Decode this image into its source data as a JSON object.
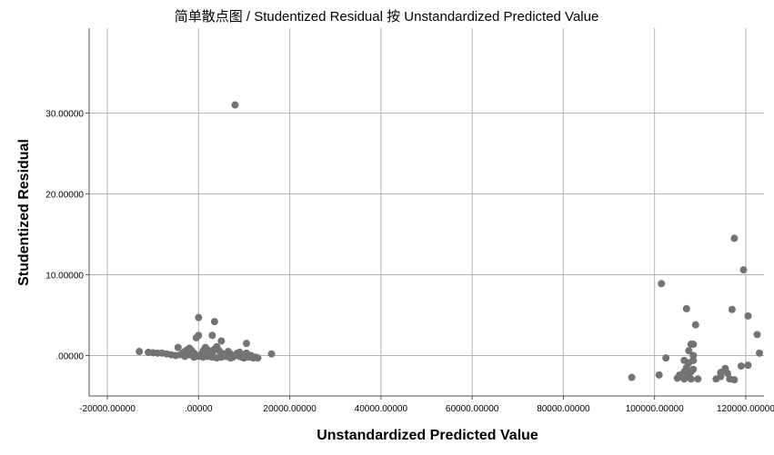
{
  "chart_data": {
    "type": "scatter",
    "title": "简单散点图 / Studentized Residual 按 Unstandardized Predicted Value",
    "xlabel": "Unstandardized Predicted Value",
    "ylabel": "Studentized Residual",
    "xlim": [
      -24000,
      124000
    ],
    "ylim": [
      -5,
      40.5
    ],
    "x_ticks": [
      -20000,
      0,
      20000,
      40000,
      60000,
      80000,
      100000,
      120000
    ],
    "x_tick_labels": [
      "-20000.00000",
      ".00000",
      "20000.00000",
      "40000.00000",
      "60000.00000",
      "80000.00000",
      "100000.00000",
      "120000.00000"
    ],
    "y_ticks": [
      0,
      10,
      20,
      30
    ],
    "y_tick_labels": [
      ".00000",
      "10.00000",
      "20.00000",
      "30.00000"
    ],
    "grid": true,
    "marker_color": "#737373",
    "series": [
      {
        "points": [
          [
            8000,
            31.0
          ],
          [
            0,
            4.7
          ],
          [
            3500,
            4.2
          ],
          [
            3000,
            2.5
          ],
          [
            -500,
            2.2
          ],
          [
            0,
            2.5
          ],
          [
            5000,
            1.8
          ],
          [
            10500,
            1.5
          ],
          [
            -4500,
            1.0
          ],
          [
            -13000,
            0.5
          ],
          [
            -11000,
            0.4
          ],
          [
            -10000,
            0.35
          ],
          [
            -9000,
            0.3
          ],
          [
            -8000,
            0.3
          ],
          [
            -7000,
            0.2
          ],
          [
            -6000,
            0.1
          ],
          [
            -5000,
            0.0
          ],
          [
            -4000,
            0.1
          ],
          [
            -3500,
            0.3
          ],
          [
            -3000,
            0.5
          ],
          [
            -2500,
            0.7
          ],
          [
            -2000,
            0.9
          ],
          [
            -1500,
            0.6
          ],
          [
            -1000,
            0.3
          ],
          [
            -500,
            0.0
          ],
          [
            0,
            -0.1
          ],
          [
            500,
            0.1
          ],
          [
            1000,
            0.6
          ],
          [
            1500,
            1.0
          ],
          [
            2000,
            0.7
          ],
          [
            2500,
            0.4
          ],
          [
            3000,
            0.2
          ],
          [
            3500,
            0.8
          ],
          [
            4000,
            1.1
          ],
          [
            4500,
            0.6
          ],
          [
            5000,
            0.3
          ],
          [
            5500,
            0.1
          ],
          [
            6000,
            -0.1
          ],
          [
            6500,
            0.5
          ],
          [
            7000,
            0.2
          ],
          [
            7500,
            -0.2
          ],
          [
            8000,
            0.0
          ],
          [
            8500,
            0.3
          ],
          [
            9000,
            -0.1
          ],
          [
            9500,
            -0.2
          ],
          [
            10000,
            0.1
          ],
          [
            10500,
            0.3
          ],
          [
            11000,
            -0.2
          ],
          [
            11500,
            0.0
          ],
          [
            12000,
            -0.3
          ],
          [
            12500,
            -0.2
          ],
          [
            13000,
            -0.3
          ],
          [
            16000,
            0.2
          ],
          [
            -3000,
            -0.1
          ],
          [
            -2000,
            0.1
          ],
          [
            -1000,
            -0.2
          ],
          [
            1000,
            -0.2
          ],
          [
            2000,
            -0.1
          ],
          [
            3000,
            -0.2
          ],
          [
            4000,
            -0.3
          ],
          [
            5000,
            -0.2
          ],
          [
            6000,
            0.2
          ],
          [
            7000,
            -0.3
          ],
          [
            9000,
            0.4
          ],
          [
            10000,
            -0.3
          ],
          [
            117500,
            14.5
          ],
          [
            119500,
            10.6
          ],
          [
            117000,
            5.7
          ],
          [
            120500,
            4.9
          ],
          [
            101500,
            8.9
          ],
          [
            107000,
            5.8
          ],
          [
            109000,
            3.8
          ],
          [
            122500,
            2.6
          ],
          [
            108000,
            1.4
          ],
          [
            108500,
            1.4
          ],
          [
            107500,
            0.6
          ],
          [
            123000,
            0.3
          ],
          [
            108500,
            0.0
          ],
          [
            102500,
            -0.3
          ],
          [
            108500,
            -0.6
          ],
          [
            106500,
            -0.6
          ],
          [
            107500,
            -0.9
          ],
          [
            120500,
            -1.2
          ],
          [
            119000,
            -1.3
          ],
          [
            107000,
            -1.5
          ],
          [
            115500,
            -1.6
          ],
          [
            106500,
            -2.0
          ],
          [
            108000,
            -2.0
          ],
          [
            116000,
            -2.2
          ],
          [
            105500,
            -2.4
          ],
          [
            101000,
            -2.4
          ],
          [
            107500,
            -2.5
          ],
          [
            114500,
            -2.6
          ],
          [
            105000,
            -2.8
          ],
          [
            116500,
            -2.9
          ],
          [
            106500,
            -2.9
          ],
          [
            113500,
            -2.9
          ],
          [
            109500,
            -2.9
          ],
          [
            95000,
            -2.7
          ],
          [
            108500,
            -1.7
          ],
          [
            108000,
            -2.9
          ],
          [
            117500,
            -3.0
          ],
          [
            114500,
            -2.1
          ]
        ]
      }
    ]
  }
}
